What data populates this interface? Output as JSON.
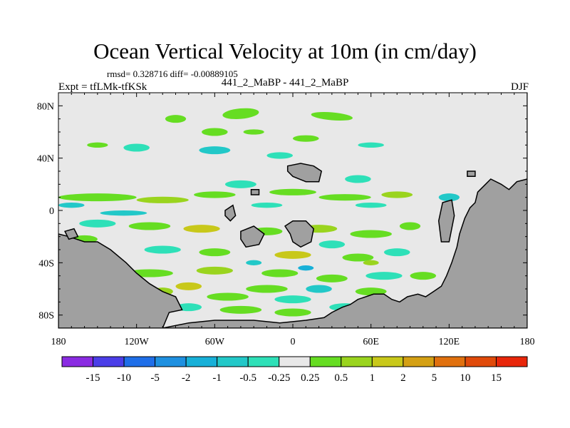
{
  "header": {
    "title": "Ocean Vertical Velocity at 10m (in cm/day)",
    "stats": "rmsd= 0.328716 diff= -0.00889105",
    "expt": "Expt = tfLMk-tfKSk",
    "subtitle": "441_2_MaBP - 441_2_MaBP",
    "season": "DJF"
  },
  "chart_data": {
    "type": "heatmap",
    "title": "Ocean Vertical Velocity at 10m (in cm/day)",
    "variable": "vertical velocity at 10m",
    "units": "cm/day",
    "xlim": [
      -180,
      180
    ],
    "ylim": [
      -90,
      90
    ],
    "x_ticks": [
      {
        "value": -180,
        "label": "180"
      },
      {
        "value": -120,
        "label": "120W"
      },
      {
        "value": -60,
        "label": "60W"
      },
      {
        "value": 0,
        "label": "0"
      },
      {
        "value": 60,
        "label": "60E"
      },
      {
        "value": 120,
        "label": "120E"
      },
      {
        "value": 180,
        "label": "180"
      }
    ],
    "y_ticks": [
      {
        "value": 80,
        "label": "80N"
      },
      {
        "value": 40,
        "label": "40N"
      },
      {
        "value": 0,
        "label": "0"
      },
      {
        "value": -40,
        "label": "40S"
      },
      {
        "value": -80,
        "label": "80S"
      }
    ],
    "colorbar": {
      "labels": [
        "-15",
        "-10",
        "-5",
        "-2",
        "-1",
        "-0.5",
        "-0.25",
        "0.25",
        "0.5",
        "1",
        "2",
        "5",
        "10",
        "15"
      ],
      "colors": [
        "#8a2be2",
        "#4b3ee8",
        "#1f6ee8",
        "#1e90e0",
        "#17b0d8",
        "#22c8c8",
        "#2ee0b8",
        "#e8e8e8",
        "#66dd22",
        "#9ad41e",
        "#c8c81a",
        "#d4a014",
        "#e0700e",
        "#e04a0a",
        "#e8260a"
      ]
    },
    "land_color": "#a0a0a0",
    "ocean_neutral_color": "#e8e8e8"
  }
}
